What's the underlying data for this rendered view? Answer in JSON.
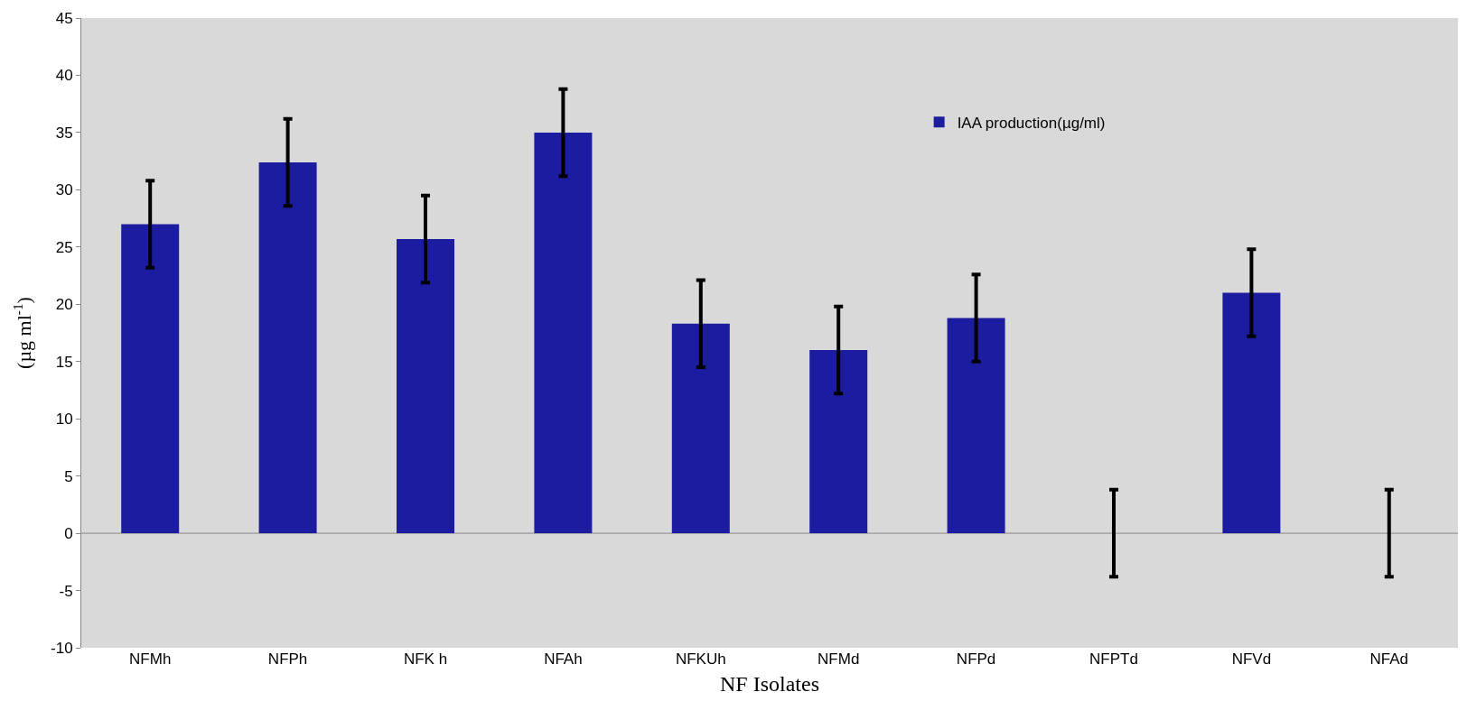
{
  "chart_data": {
    "type": "bar",
    "xlabel": "NF Isolates",
    "ylabel": "(µg ml$^{-1}$)",
    "categories": [
      "NFMh",
      "NFPh",
      "NFK h",
      "NFAh",
      "NFKUh",
      "NFMd",
      "NFPd",
      "NFPTd",
      "NFVd",
      "NFAd"
    ],
    "series": [
      {
        "name": "IAA production(µg/ml)",
        "color": "#1c1ca0",
        "values": [
          27.0,
          32.4,
          25.7,
          35.0,
          18.3,
          16.0,
          18.8,
          0,
          21.0,
          0
        ],
        "errors": [
          3.8,
          3.8,
          3.8,
          3.8,
          3.8,
          3.8,
          3.8,
          3.8,
          3.8,
          3.8
        ]
      }
    ],
    "ylim": [
      -10,
      45
    ],
    "yticks": [
      -10,
      -5,
      0,
      5,
      10,
      15,
      20,
      25,
      30,
      35,
      40,
      45
    ],
    "ref_lines": [
      {
        "axis": "y",
        "value": 0,
        "color": "#888888"
      }
    ],
    "grid": false,
    "legend": "top right"
  }
}
